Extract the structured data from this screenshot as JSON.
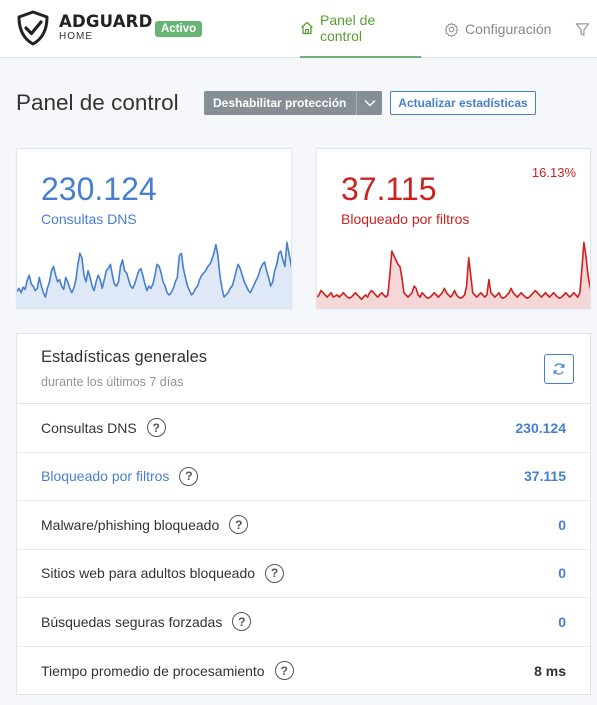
{
  "header": {
    "brand_name": "ADGUARD",
    "brand_sub": "HOME",
    "status_badge": "Activo",
    "status_color": "#66b574",
    "nav": [
      {
        "label": "Panel de control",
        "icon": "home-icon",
        "active": true
      },
      {
        "label": "Configuración",
        "icon": "gear-icon",
        "active": false
      },
      {
        "label": "",
        "icon": "filter-icon",
        "active": false
      }
    ]
  },
  "page": {
    "title": "Panel de control",
    "disable_button": "Deshabilitar protección",
    "refresh_button": "Actualizar estadísticas"
  },
  "cards": {
    "dns": {
      "value": "230.124",
      "label": "Consultas DNS",
      "color": "#467fcf",
      "series": [
        15,
        18,
        14,
        19,
        17,
        25,
        30,
        22,
        20,
        16,
        18,
        28,
        20,
        14,
        10,
        18,
        24,
        34,
        38,
        30,
        24,
        26,
        20,
        17,
        28,
        24,
        18,
        14,
        18,
        26,
        40,
        50,
        46,
        30,
        24,
        34,
        28,
        20,
        16,
        24,
        30,
        26,
        18,
        26,
        34,
        36,
        40,
        30,
        22,
        20,
        24,
        38,
        44,
        34,
        32,
        26,
        20,
        18,
        22,
        28,
        34,
        36,
        30,
        22,
        16,
        20,
        18,
        22,
        30,
        40,
        38,
        32,
        24,
        20,
        14,
        12,
        14,
        18,
        24,
        28,
        48,
        50,
        36,
        28,
        20,
        16,
        12,
        14,
        18,
        20,
        26,
        30,
        32,
        34,
        38,
        40,
        44,
        50,
        58,
        48,
        30,
        18,
        10,
        12,
        14,
        18,
        20,
        26,
        34,
        40,
        36,
        30,
        24,
        20,
        16,
        14,
        18,
        22,
        26,
        30,
        36,
        40,
        42,
        34,
        28,
        20,
        24,
        34,
        40,
        50,
        52,
        44,
        38,
        60,
        50,
        40,
        30
      ]
    },
    "blocked": {
      "value": "37.115",
      "label": "Bloqueado por filtros",
      "percent": "16.13%",
      "color": "#cd201f",
      "series": [
        10,
        12,
        16,
        14,
        12,
        10,
        12,
        14,
        10,
        11,
        12,
        10,
        12,
        14,
        12,
        10,
        9,
        10,
        12,
        14,
        12,
        10,
        8,
        10,
        12,
        10,
        14,
        16,
        14,
        12,
        10,
        12,
        14,
        12,
        10,
        12,
        30,
        52,
        48,
        44,
        40,
        38,
        28,
        14,
        12,
        10,
        12,
        14,
        20,
        18,
        12,
        10,
        14,
        12,
        10,
        9,
        10,
        12,
        14,
        12,
        10,
        12,
        14,
        18,
        14,
        12,
        10,
        12,
        16,
        12,
        10,
        9,
        10,
        12,
        20,
        46,
        30,
        14,
        12,
        10,
        12,
        14,
        12,
        10,
        12,
        26,
        14,
        12,
        10,
        12,
        14,
        10,
        9,
        10,
        12,
        14,
        18,
        14,
        12,
        10,
        12,
        14,
        12,
        10,
        9,
        10,
        12,
        14,
        16,
        14,
        12,
        10,
        12,
        14,
        12,
        10,
        12,
        14,
        12,
        10,
        9,
        10,
        12,
        14,
        12,
        10,
        12,
        14,
        12,
        10,
        14,
        36,
        60,
        48,
        30,
        20,
        12
      ]
    }
  },
  "stats": {
    "title": "Estadísticas generales",
    "subtitle": "durante los últimos 7 días",
    "rows": [
      {
        "label": "Consultas DNS",
        "value": "230.124"
      },
      {
        "label": "Bloqueado por filtros",
        "value": "37.115"
      },
      {
        "label": "Malware/phishing bloqueado",
        "value": "0"
      },
      {
        "label": "Sitios web para adultos bloqueado",
        "value": "0"
      },
      {
        "label": "Búsquedas seguras forzadas",
        "value": "0"
      },
      {
        "label": "Tiempo promedio de procesamiento",
        "value": "8 ms"
      }
    ]
  }
}
